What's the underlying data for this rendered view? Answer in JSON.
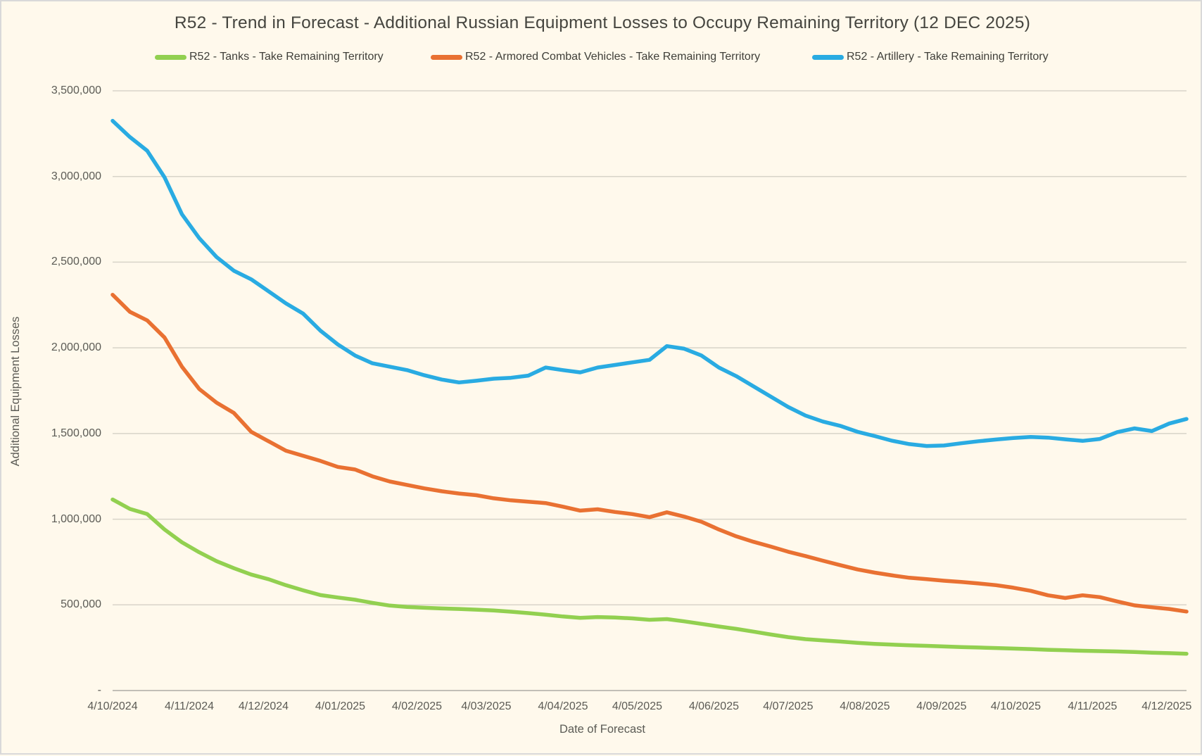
{
  "title": "R52 - Trend in Forecast - Additional Russian Equipment Losses to Occupy Remaining Territory (12 DEC 2025)",
  "colors": {
    "background": "#FFF9EC",
    "border": "#D9D9D9",
    "gridline": "#D8D4C9",
    "axis_line": "#C2BFB6",
    "text_gray": "#5B5B55",
    "title_gray": "#45453F",
    "tanks_green": "#92D050",
    "acv_orange": "#E97132",
    "artillery_blue": "#29ABE2"
  },
  "chart_data": {
    "type": "line",
    "title": "R52 - Trend in Forecast - Additional Russian Equipment Losses to Occupy Remaining Territory (12 DEC 2025)",
    "xlabel": "Date of Forecast",
    "ylabel": "Additional Equipment Losses",
    "ylim": [
      0,
      3500000
    ],
    "grid": "horizontal",
    "legend_position": "top",
    "y_tick_labels": [
      "-",
      "500,000",
      "1,000,000",
      "1,500,000",
      "2,000,000",
      "2,500,000",
      "3,000,000",
      "3,500,000"
    ],
    "y_tick_values": [
      0,
      500000,
      1000000,
      1500000,
      2000000,
      2500000,
      3000000,
      3500000
    ],
    "x_tick_labels": [
      "4/10/2024",
      "4/11/2024",
      "4/12/2024",
      "4/01/2025",
      "4/02/2025",
      "4/03/2025",
      "4/04/2025",
      "4/05/2025",
      "4/06/2025",
      "4/07/2025",
      "4/08/2025",
      "4/09/2025",
      "4/10/2025",
      "4/11/2025",
      "4/12/2025"
    ],
    "x": [
      "4/10/2024",
      "11/10/2024",
      "18/10/2024",
      "25/10/2024",
      "1/11/2024",
      "8/11/2024",
      "15/11/2024",
      "22/11/2024",
      "29/11/2024",
      "6/12/2024",
      "13/12/2024",
      "20/12/2024",
      "27/12/2024",
      "3/01/2025",
      "10/01/2025",
      "17/01/2025",
      "24/01/2025",
      "31/01/2025",
      "7/02/2025",
      "14/02/2025",
      "21/02/2025",
      "28/02/2025",
      "7/03/2025",
      "14/03/2025",
      "21/03/2025",
      "28/03/2025",
      "4/04/2025",
      "11/04/2025",
      "18/04/2025",
      "25/04/2025",
      "2/05/2025",
      "9/05/2025",
      "16/05/2025",
      "23/05/2025",
      "30/05/2025",
      "6/06/2025",
      "13/06/2025",
      "20/06/2025",
      "27/06/2025",
      "4/07/2025",
      "11/07/2025",
      "18/07/2025",
      "25/07/2025",
      "1/08/2025",
      "8/08/2025",
      "15/08/2025",
      "22/08/2025",
      "29/08/2025",
      "5/09/2025",
      "12/09/2025",
      "19/09/2025",
      "26/09/2025",
      "3/10/2025",
      "10/10/2025",
      "17/10/2025",
      "24/10/2025",
      "31/10/2025",
      "7/11/2025",
      "14/11/2025",
      "21/11/2025",
      "28/11/2025",
      "5/12/2025",
      "12/12/2025"
    ],
    "series": [
      {
        "name": "R52 - Tanks - Take Remaining Territory",
        "color": "#92D050",
        "values": [
          1115000,
          1060000,
          1030000,
          940000,
          865000,
          807000,
          755000,
          714000,
          677000,
          650000,
          615000,
          585000,
          557000,
          543000,
          530000,
          512000,
          496000,
          488000,
          483000,
          479000,
          476000,
          472000,
          467000,
          460000,
          452000,
          443000,
          432000,
          424000,
          429000,
          426000,
          421000,
          413000,
          417000,
          404000,
          389000,
          374000,
          360000,
          344000,
          327000,
          312000,
          300000,
          293000,
          286000,
          278000,
          272000,
          268000,
          264000,
          261000,
          257000,
          254000,
          251000,
          248000,
          245000,
          242000,
          238000,
          235000,
          232000,
          230000,
          228000,
          225000,
          221000,
          218000,
          215000
        ]
      },
      {
        "name": "R52 - Armored Combat Vehicles - Take Remaining Territory",
        "color": "#E97132",
        "values": [
          2310000,
          2210000,
          2160000,
          2060000,
          1890000,
          1760000,
          1680000,
          1620000,
          1510000,
          1455000,
          1400000,
          1370000,
          1340000,
          1305000,
          1290000,
          1250000,
          1220000,
          1200000,
          1180000,
          1163000,
          1150000,
          1140000,
          1122000,
          1110000,
          1102000,
          1094000,
          1073000,
          1050000,
          1058000,
          1042000,
          1030000,
          1012000,
          1040000,
          1015000,
          985000,
          940000,
          900000,
          868000,
          840000,
          810000,
          785000,
          758000,
          732000,
          707000,
          688000,
          672000,
          658000,
          650000,
          641000,
          634000,
          625000,
          615000,
          600000,
          582000,
          556000,
          540000,
          556000,
          545000,
          520000,
          497000,
          486000,
          476000,
          461000
        ]
      },
      {
        "name": "R52 - Artillery - Take Remaining Territory",
        "color": "#29ABE2",
        "values": [
          3325000,
          3230000,
          3150000,
          2995000,
          2780000,
          2640000,
          2530000,
          2450000,
          2400000,
          2330000,
          2260000,
          2200000,
          2100000,
          2020000,
          1955000,
          1910000,
          1890000,
          1870000,
          1840000,
          1815000,
          1798000,
          1808000,
          1820000,
          1825000,
          1838000,
          1885000,
          1870000,
          1857000,
          1885000,
          1900000,
          1915000,
          1930000,
          2010000,
          1995000,
          1955000,
          1885000,
          1835000,
          1775000,
          1715000,
          1655000,
          1605000,
          1570000,
          1545000,
          1510000,
          1485000,
          1458000,
          1438000,
          1427000,
          1430000,
          1443000,
          1455000,
          1465000,
          1474000,
          1480000,
          1476000,
          1466000,
          1457000,
          1468000,
          1508000,
          1530000,
          1514000,
          1558000,
          1585000
        ]
      }
    ]
  }
}
